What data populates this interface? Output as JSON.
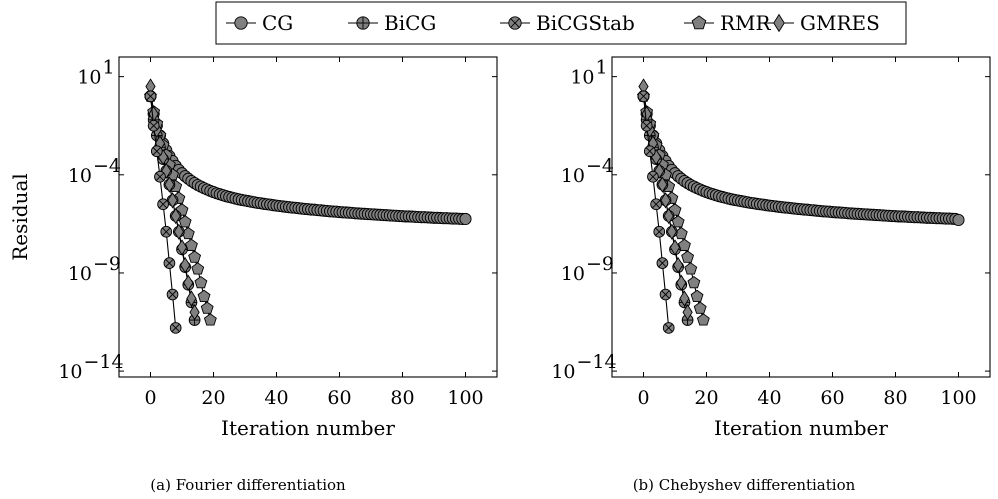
{
  "legend": [
    "CG",
    "BiCG",
    "BiCGStab",
    "RMR",
    "GMRES"
  ],
  "chart_data": [
    {
      "type": "line",
      "caption": "(a) Fourier differentiation",
      "xlabel": "Iteration number",
      "ylabel": "Residual",
      "y_scale": "log",
      "xlim": [
        -10,
        110
      ],
      "ylim_exponent": [
        -14.3,
        2.0
      ],
      "xticks": [
        0,
        20,
        40,
        60,
        80,
        100
      ],
      "yticks_exponent": [
        1,
        -4,
        -9,
        -14
      ],
      "series": [
        {
          "name": "CG",
          "marker": "circle",
          "x_end": 100,
          "log10_y": [
            0.0,
            -0.9,
            -1.5,
            -2.0,
            -2.4,
            -2.75,
            -3.05,
            -3.3,
            -3.55,
            -3.75,
            -3.92,
            -4.07,
            -4.2,
            -4.32,
            -4.42,
            -4.52,
            -4.6,
            -4.68,
            -4.75,
            -4.82,
            -4.88,
            -4.94,
            -4.99,
            -5.04,
            -5.09,
            -5.13,
            -5.17,
            -5.21,
            -5.25,
            -5.28,
            -5.31,
            -5.34,
            -5.37,
            -5.4,
            -5.43,
            -5.45,
            -5.48,
            -5.5,
            -5.52,
            -5.55,
            -5.57,
            -5.59,
            -5.61,
            -5.63,
            -5.65,
            -5.67,
            -5.68,
            -5.7,
            -5.72,
            -5.74,
            -5.75,
            -5.77,
            -5.78,
            -5.8,
            -5.81,
            -5.83,
            -5.84,
            -5.86,
            -5.87,
            -5.88,
            -5.9,
            -5.91,
            -5.92,
            -5.93,
            -5.94,
            -5.96,
            -5.97,
            -5.98,
            -5.99,
            -6.0,
            -6.01,
            -6.02,
            -6.03,
            -6.04,
            -6.05,
            -6.06,
            -6.07,
            -6.08,
            -6.09,
            -6.1,
            -6.11,
            -6.12,
            -6.12,
            -6.13,
            -6.14,
            -6.15,
            -6.16,
            -6.16,
            -6.17,
            -6.18,
            -6.19,
            -6.19,
            -6.2,
            -6.21,
            -6.21,
            -6.22,
            -6.23,
            -6.23,
            -6.24,
            -6.25,
            -6.25
          ]
        },
        {
          "name": "BiCG",
          "marker": "circle-plus",
          "x": [
            0,
            1,
            2,
            3,
            4,
            5,
            6,
            7,
            8,
            9,
            10,
            11,
            12,
            13,
            14
          ],
          "log10_y": [
            0.0,
            -1.2,
            -2.0,
            -2.6,
            -3.2,
            -3.8,
            -4.5,
            -5.3,
            -6.1,
            -6.9,
            -7.8,
            -8.7,
            -9.6,
            -10.5,
            -11.4
          ]
        },
        {
          "name": "BiCGStab",
          "marker": "circle-x",
          "x": [
            0,
            1,
            2,
            3,
            4,
            5,
            6,
            7,
            8
          ],
          "log10_y": [
            0.0,
            -1.5,
            -2.8,
            -4.1,
            -5.5,
            -6.9,
            -8.5,
            -10.1,
            -11.8
          ]
        },
        {
          "name": "RMR",
          "marker": "pentagon",
          "x": [
            0,
            1,
            2,
            3,
            4,
            5,
            6,
            7,
            8,
            9,
            10,
            11,
            12,
            13,
            14,
            15,
            16,
            17,
            18,
            19
          ],
          "log10_y": [
            0.0,
            -0.8,
            -1.4,
            -2.0,
            -2.5,
            -3.0,
            -3.5,
            -4.0,
            -4.6,
            -5.2,
            -5.8,
            -6.4,
            -7.0,
            -7.6,
            -8.2,
            -8.8,
            -9.5,
            -10.2,
            -10.8,
            -11.4
          ]
        },
        {
          "name": "GMRES",
          "marker": "diamond",
          "x": [
            0,
            1,
            2,
            3,
            4,
            5,
            6,
            7,
            8,
            9,
            10,
            11,
            12,
            13,
            14
          ],
          "log10_y": [
            0.5,
            -0.9,
            -1.7,
            -2.4,
            -3.1,
            -3.8,
            -4.5,
            -5.3,
            -6.1,
            -6.9,
            -7.7,
            -8.6,
            -9.5,
            -10.3,
            -11.0
          ]
        }
      ]
    },
    {
      "type": "line",
      "caption": "(b) Chebyshev differentiation",
      "xlabel": "Iteration number",
      "ylabel": "",
      "y_scale": "log",
      "xlim": [
        -10,
        110
      ],
      "ylim_exponent": [
        -14.3,
        2.0
      ],
      "xticks": [
        0,
        20,
        40,
        60,
        80,
        100
      ],
      "yticks_exponent": [
        1,
        -4,
        -9,
        -14
      ],
      "series": [
        {
          "name": "CG",
          "marker": "circle",
          "x_end": 100,
          "log10_y": [
            0.0,
            -0.9,
            -1.5,
            -2.0,
            -2.4,
            -2.75,
            -3.05,
            -3.3,
            -3.55,
            -3.75,
            -3.92,
            -4.07,
            -4.2,
            -4.32,
            -4.42,
            -4.52,
            -4.6,
            -4.68,
            -4.75,
            -4.82,
            -4.88,
            -4.94,
            -4.99,
            -5.04,
            -5.09,
            -5.13,
            -5.17,
            -5.21,
            -5.25,
            -5.28,
            -5.31,
            -5.34,
            -5.37,
            -5.4,
            -5.43,
            -5.45,
            -5.48,
            -5.5,
            -5.52,
            -5.55,
            -5.57,
            -5.59,
            -5.61,
            -5.63,
            -5.65,
            -5.67,
            -5.68,
            -5.7,
            -5.72,
            -5.74,
            -5.75,
            -5.77,
            -5.78,
            -5.8,
            -5.81,
            -5.83,
            -5.84,
            -5.86,
            -5.87,
            -5.88,
            -5.9,
            -5.91,
            -5.92,
            -5.93,
            -5.94,
            -5.96,
            -5.97,
            -5.98,
            -5.99,
            -6.0,
            -6.01,
            -6.02,
            -6.03,
            -6.04,
            -6.05,
            -6.06,
            -6.07,
            -6.08,
            -6.09,
            -6.1,
            -6.11,
            -6.12,
            -6.12,
            -6.13,
            -6.14,
            -6.15,
            -6.16,
            -6.16,
            -6.17,
            -6.18,
            -6.19,
            -6.19,
            -6.2,
            -6.21,
            -6.21,
            -6.22,
            -6.23,
            -6.23,
            -6.24,
            -6.25,
            -6.3
          ]
        },
        {
          "name": "BiCG",
          "marker": "circle-plus",
          "x": [
            0,
            1,
            2,
            3,
            4,
            5,
            6,
            7,
            8,
            9,
            10,
            11,
            12,
            13,
            14
          ],
          "log10_y": [
            0.0,
            -1.2,
            -2.0,
            -2.6,
            -3.2,
            -3.8,
            -4.5,
            -5.3,
            -6.1,
            -6.9,
            -7.8,
            -8.7,
            -9.6,
            -10.5,
            -11.4
          ]
        },
        {
          "name": "BiCGStab",
          "marker": "circle-x",
          "x": [
            0,
            1,
            2,
            3,
            4,
            5,
            6,
            7,
            8
          ],
          "log10_y": [
            0.0,
            -1.5,
            -2.8,
            -4.1,
            -5.5,
            -6.9,
            -8.5,
            -10.1,
            -11.8
          ]
        },
        {
          "name": "RMR",
          "marker": "pentagon",
          "x": [
            0,
            1,
            2,
            3,
            4,
            5,
            6,
            7,
            8,
            9,
            10,
            11,
            12,
            13,
            14,
            15,
            16,
            17,
            18,
            19
          ],
          "log10_y": [
            0.0,
            -0.8,
            -1.4,
            -2.0,
            -2.5,
            -3.0,
            -3.5,
            -4.0,
            -4.6,
            -5.2,
            -5.8,
            -6.4,
            -7.0,
            -7.6,
            -8.2,
            -8.8,
            -9.5,
            -10.2,
            -10.8,
            -11.4
          ]
        },
        {
          "name": "GMRES",
          "marker": "diamond",
          "x": [
            0,
            1,
            2,
            3,
            4,
            5,
            6,
            7,
            8,
            9,
            10,
            11,
            12,
            13,
            14
          ],
          "log10_y": [
            0.5,
            -0.9,
            -1.7,
            -2.4,
            -3.1,
            -3.8,
            -4.5,
            -5.3,
            -6.1,
            -6.9,
            -7.7,
            -8.6,
            -9.5,
            -10.3,
            -11.0
          ]
        }
      ]
    }
  ],
  "colors": {
    "marker_fill": "#808080",
    "stroke": "#000000",
    "background": "#ffffff"
  }
}
